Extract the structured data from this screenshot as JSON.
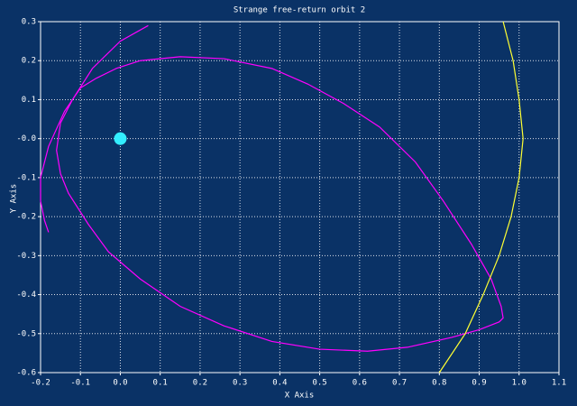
{
  "chart_data": {
    "type": "line",
    "title": "Strange free-return orbit 2",
    "x_label": "X Axis",
    "y_label": "Y Axis",
    "xlim": [
      -0.2,
      1.1
    ],
    "ylim": [
      -0.6,
      0.3
    ],
    "xticks": [
      -0.2,
      -0.1,
      {
        "value": 0,
        "label": "0.0"
      },
      0.1,
      0.2,
      0.3,
      0.4,
      0.5,
      0.6,
      0.7,
      0.8,
      0.9,
      {
        "value": 1,
        "label": "1.0"
      },
      1.1
    ],
    "yticks": [
      -0.6,
      -0.5,
      -0.4,
      -0.3,
      -0.2,
      -0.1,
      {
        "value": 0,
        "label": "-0.0"
      },
      0.1,
      0.2,
      0.3
    ],
    "grid": true,
    "series": [
      {
        "color": "#ff00ff",
        "x": [
          0.07,
          0.0,
          -0.07,
          -0.12,
          -0.15,
          -0.16,
          -0.15,
          -0.13,
          -0.08,
          -0.03,
          0.05,
          0.15,
          0.26,
          0.38,
          0.5,
          0.62,
          0.72,
          0.83,
          0.9,
          0.95,
          0.96,
          0.955,
          0.93,
          0.88,
          0.81,
          0.74,
          0.65,
          0.56,
          0.47,
          0.38,
          0.26,
          0.15,
          0.05,
          -0.01,
          -0.06,
          -0.1,
          -0.14,
          -0.18,
          -0.2,
          -0.2,
          -0.19,
          -0.18
        ],
        "values": [
          0.29,
          0.25,
          0.18,
          0.1,
          0.04,
          -0.03,
          -0.09,
          -0.14,
          -0.22,
          -0.29,
          -0.36,
          -0.43,
          -0.48,
          -0.52,
          -0.54,
          -0.545,
          -0.535,
          -0.51,
          -0.49,
          -0.47,
          -0.46,
          -0.43,
          -0.36,
          -0.27,
          -0.16,
          -0.06,
          0.03,
          0.09,
          0.14,
          0.18,
          0.205,
          0.21,
          0.2,
          0.18,
          0.155,
          0.13,
          0.07,
          -0.02,
          -0.1,
          -0.16,
          -0.21,
          -0.24
        ]
      },
      {
        "color": "#ffff33",
        "x": [
          0.96,
          0.985,
          1.0,
          1.01,
          1.0,
          0.98,
          0.95,
          0.91,
          0.865,
          0.8
        ],
        "values": [
          0.3,
          0.2,
          0.1,
          0,
          -0.1,
          -0.2,
          -0.3,
          -0.4,
          -0.5,
          -0.6
        ]
      },
      {
        "color": "#33eeff",
        "marker": "circle",
        "x": [
          0
        ],
        "values": [
          0
        ]
      }
    ]
  }
}
